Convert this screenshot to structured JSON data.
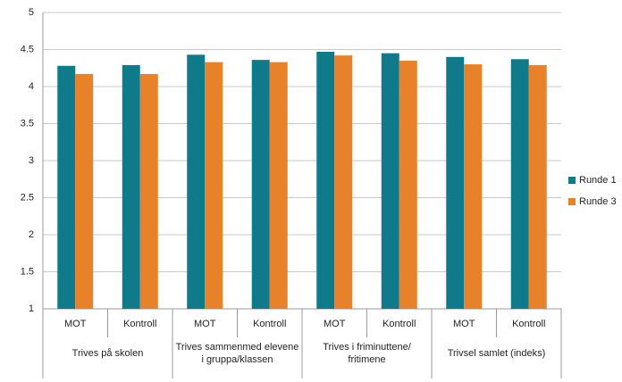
{
  "chart_data": {
    "type": "bar",
    "categories": [
      "MOT",
      "Kontroll",
      "MOT",
      "Kontroll",
      "MOT",
      "Kontroll",
      "MOT",
      "Kontroll"
    ],
    "groups": [
      "Trives på skolen",
      "Trives sammenmed elevene i gruppa/klassen",
      "Trives i friminuttene/ fritimene",
      "Trivsel samlet (indeks)"
    ],
    "series": [
      {
        "name": "Runde 1",
        "color": "#0f7b8a",
        "values": [
          4.28,
          4.29,
          4.43,
          4.36,
          4.47,
          4.45,
          4.4,
          4.37
        ]
      },
      {
        "name": "Runde 3",
        "color": "#e8822a",
        "values": [
          4.17,
          4.17,
          4.33,
          4.33,
          4.42,
          4.35,
          4.3,
          4.29
        ]
      }
    ],
    "ylim": [
      1,
      5
    ],
    "yticks": [
      1,
      1.5,
      2,
      2.5,
      3,
      3.5,
      4,
      4.5,
      5
    ],
    "grid": true,
    "legend": "right"
  }
}
